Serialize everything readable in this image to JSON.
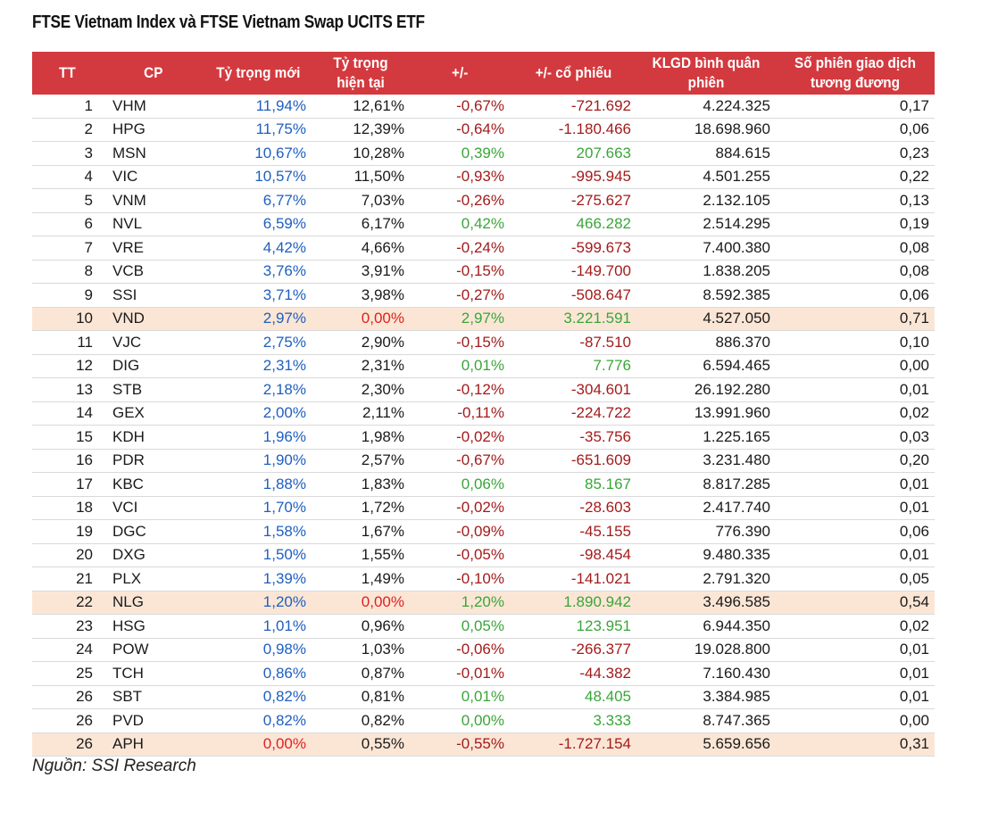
{
  "title": "FTSE Vietnam Index và FTSE Vietnam Swap UCITS ETF",
  "headers": {
    "tt": "TT",
    "cp": "CP",
    "new_weight": "Tỷ trọng mới",
    "current_weight": "Tỷ trọng hiện tại",
    "change": "+/-",
    "share_change": "+/- cổ phiếu",
    "avg_volume": "KLGD bình quân phiên",
    "sessions": "Số phiên giao dịch tương đương"
  },
  "colors": {
    "header_bg": "#d33a3f",
    "highlight_row": "#fbe6d6",
    "new_weight": "#1f5fbf",
    "zero_weight": "#e02020",
    "negative": "#a31b1b",
    "positive": "#3aa53a"
  },
  "rows": [
    {
      "tt": "1",
      "cp": "VHM",
      "new_weight": "11,94%",
      "current_weight": "12,61%",
      "change": "-0,67%",
      "share_change": "-721.692",
      "avg_volume": "4.224.325",
      "sessions": "0,17",
      "direction": "down",
      "highlight": false
    },
    {
      "tt": "2",
      "cp": "HPG",
      "new_weight": "11,75%",
      "current_weight": "12,39%",
      "change": "-0,64%",
      "share_change": "-1.180.466",
      "avg_volume": "18.698.960",
      "sessions": "0,06",
      "direction": "down",
      "highlight": false
    },
    {
      "tt": "3",
      "cp": "MSN",
      "new_weight": "10,67%",
      "current_weight": "10,28%",
      "change": "0,39%",
      "share_change": "207.663",
      "avg_volume": "884.615",
      "sessions": "0,23",
      "direction": "up",
      "highlight": false
    },
    {
      "tt": "4",
      "cp": "VIC",
      "new_weight": "10,57%",
      "current_weight": "11,50%",
      "change": "-0,93%",
      "share_change": "-995.945",
      "avg_volume": "4.501.255",
      "sessions": "0,22",
      "direction": "down",
      "highlight": false
    },
    {
      "tt": "5",
      "cp": "VNM",
      "new_weight": "6,77%",
      "current_weight": "7,03%",
      "change": "-0,26%",
      "share_change": "-275.627",
      "avg_volume": "2.132.105",
      "sessions": "0,13",
      "direction": "down",
      "highlight": false
    },
    {
      "tt": "6",
      "cp": "NVL",
      "new_weight": "6,59%",
      "current_weight": "6,17%",
      "change": "0,42%",
      "share_change": "466.282",
      "avg_volume": "2.514.295",
      "sessions": "0,19",
      "direction": "up",
      "highlight": false
    },
    {
      "tt": "7",
      "cp": "VRE",
      "new_weight": "4,42%",
      "current_weight": "4,66%",
      "change": "-0,24%",
      "share_change": "-599.673",
      "avg_volume": "7.400.380",
      "sessions": "0,08",
      "direction": "down",
      "highlight": false
    },
    {
      "tt": "8",
      "cp": "VCB",
      "new_weight": "3,76%",
      "current_weight": "3,91%",
      "change": "-0,15%",
      "share_change": "-149.700",
      "avg_volume": "1.838.205",
      "sessions": "0,08",
      "direction": "down",
      "highlight": false
    },
    {
      "tt": "9",
      "cp": "SSI",
      "new_weight": "3,71%",
      "current_weight": "3,98%",
      "change": "-0,27%",
      "share_change": "-508.647",
      "avg_volume": "8.592.385",
      "sessions": "0,06",
      "direction": "down",
      "highlight": false
    },
    {
      "tt": "10",
      "cp": "VND",
      "new_weight": "2,97%",
      "current_weight": "0,00%",
      "change": "2,97%",
      "share_change": "3.221.591",
      "avg_volume": "4.527.050",
      "sessions": "0,71",
      "direction": "up",
      "highlight": true,
      "current_zero": true
    },
    {
      "tt": "11",
      "cp": "VJC",
      "new_weight": "2,75%",
      "current_weight": "2,90%",
      "change": "-0,15%",
      "share_change": "-87.510",
      "avg_volume": "886.370",
      "sessions": "0,10",
      "direction": "down",
      "highlight": false
    },
    {
      "tt": "12",
      "cp": "DIG",
      "new_weight": "2,31%",
      "current_weight": "2,31%",
      "change": "0,01%",
      "share_change": "7.776",
      "avg_volume": "6.594.465",
      "sessions": "0,00",
      "direction": "up",
      "highlight": false
    },
    {
      "tt": "13",
      "cp": "STB",
      "new_weight": "2,18%",
      "current_weight": "2,30%",
      "change": "-0,12%",
      "share_change": "-304.601",
      "avg_volume": "26.192.280",
      "sessions": "0,01",
      "direction": "down",
      "highlight": false
    },
    {
      "tt": "14",
      "cp": "GEX",
      "new_weight": "2,00%",
      "current_weight": "2,11%",
      "change": "-0,11%",
      "share_change": "-224.722",
      "avg_volume": "13.991.960",
      "sessions": "0,02",
      "direction": "down",
      "highlight": false
    },
    {
      "tt": "15",
      "cp": "KDH",
      "new_weight": "1,96%",
      "current_weight": "1,98%",
      "change": "-0,02%",
      "share_change": "-35.756",
      "avg_volume": "1.225.165",
      "sessions": "0,03",
      "direction": "down",
      "highlight": false
    },
    {
      "tt": "16",
      "cp": "PDR",
      "new_weight": "1,90%",
      "current_weight": "2,57%",
      "change": "-0,67%",
      "share_change": "-651.609",
      "avg_volume": "3.231.480",
      "sessions": "0,20",
      "direction": "down",
      "highlight": false
    },
    {
      "tt": "17",
      "cp": "KBC",
      "new_weight": "1,88%",
      "current_weight": "1,83%",
      "change": "0,06%",
      "share_change": "85.167",
      "avg_volume": "8.817.285",
      "sessions": "0,01",
      "direction": "up",
      "highlight": false
    },
    {
      "tt": "18",
      "cp": "VCI",
      "new_weight": "1,70%",
      "current_weight": "1,72%",
      "change": "-0,02%",
      "share_change": "-28.603",
      "avg_volume": "2.417.740",
      "sessions": "0,01",
      "direction": "down",
      "highlight": false
    },
    {
      "tt": "19",
      "cp": "DGC",
      "new_weight": "1,58%",
      "current_weight": "1,67%",
      "change": "-0,09%",
      "share_change": "-45.155",
      "avg_volume": "776.390",
      "sessions": "0,06",
      "direction": "down",
      "highlight": false
    },
    {
      "tt": "20",
      "cp": "DXG",
      "new_weight": "1,50%",
      "current_weight": "1,55%",
      "change": "-0,05%",
      "share_change": "-98.454",
      "avg_volume": "9.480.335",
      "sessions": "0,01",
      "direction": "down",
      "highlight": false
    },
    {
      "tt": "21",
      "cp": "PLX",
      "new_weight": "1,39%",
      "current_weight": "1,49%",
      "change": "-0,10%",
      "share_change": "-141.021",
      "avg_volume": "2.791.320",
      "sessions": "0,05",
      "direction": "down",
      "highlight": false
    },
    {
      "tt": "22",
      "cp": "NLG",
      "new_weight": "1,20%",
      "current_weight": "0,00%",
      "change": "1,20%",
      "share_change": "1.890.942",
      "avg_volume": "3.496.585",
      "sessions": "0,54",
      "direction": "up",
      "highlight": true,
      "current_zero": true
    },
    {
      "tt": "23",
      "cp": "HSG",
      "new_weight": "1,01%",
      "current_weight": "0,96%",
      "change": "0,05%",
      "share_change": "123.951",
      "avg_volume": "6.944.350",
      "sessions": "0,02",
      "direction": "up",
      "highlight": false
    },
    {
      "tt": "24",
      "cp": "POW",
      "new_weight": "0,98%",
      "current_weight": "1,03%",
      "change": "-0,06%",
      "share_change": "-266.377",
      "avg_volume": "19.028.800",
      "sessions": "0,01",
      "direction": "down",
      "highlight": false
    },
    {
      "tt": "25",
      "cp": "TCH",
      "new_weight": "0,86%",
      "current_weight": "0,87%",
      "change": "-0,01%",
      "share_change": "-44.382",
      "avg_volume": "7.160.430",
      "sessions": "0,01",
      "direction": "down",
      "highlight": false
    },
    {
      "tt": "26",
      "cp": "SBT",
      "new_weight": "0,82%",
      "current_weight": "0,81%",
      "change": "0,01%",
      "share_change": "48.405",
      "avg_volume": "3.384.985",
      "sessions": "0,01",
      "direction": "up",
      "highlight": false
    },
    {
      "tt": "26",
      "cp": "PVD",
      "new_weight": "0,82%",
      "current_weight": "0,82%",
      "change": "0,00%",
      "share_change": "3.333",
      "avg_volume": "8.747.365",
      "sessions": "0,00",
      "direction": "up",
      "highlight": false
    },
    {
      "tt": "26",
      "cp": "APH",
      "new_weight": "0,00%",
      "current_weight": "0,55%",
      "change": "-0,55%",
      "share_change": "-1.727.154",
      "avg_volume": "5.659.656",
      "sessions": "0,31",
      "direction": "down",
      "highlight": true,
      "new_zero": true
    }
  ],
  "source": "Nguồn: SSI Research"
}
